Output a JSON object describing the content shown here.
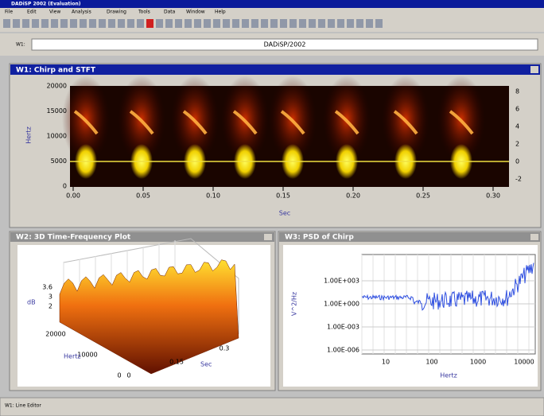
{
  "app": {
    "title": "DADiSP 2002 (Evaluation)",
    "menu": [
      "File",
      "Edit",
      "View",
      "Analysis",
      "Drawing",
      "Tools",
      "Data",
      "Window",
      "Help"
    ],
    "command_label": "W1:",
    "command_text": "DADiSP/2002",
    "status": "W1: Line Editor"
  },
  "w1": {
    "title": "W1: Chirp and STFT",
    "y_label": "Hertz",
    "x_label": "Sec",
    "y_ticks": [
      "0",
      "5000",
      "10000",
      "15000",
      "20000"
    ],
    "y2_ticks": [
      "-2",
      "0",
      "2",
      "4",
      "6",
      "8"
    ],
    "x_ticks": [
      "0.00",
      "0.05",
      "0.10",
      "0.15",
      "0.20",
      "0.25",
      "0.30"
    ]
  },
  "w2": {
    "title": "W2: 3D Time-Frequency Plot",
    "z_label": "dB",
    "z_ticks": [
      "2",
      "3",
      "3.6"
    ],
    "y_label": "Hertz",
    "y_ticks": [
      "20000",
      "10000",
      "0"
    ],
    "x_label": "Sec",
    "x_ticks": [
      "0",
      "0.15",
      "0.3"
    ]
  },
  "w3": {
    "title": "W3: PSD of Chirp",
    "y_label": "V^2/Hz",
    "y_ticks": [
      "1.00E-006",
      "1.00E-003",
      "1.00E+000",
      "1.00E+003"
    ],
    "x_ticks": [
      "10",
      "100",
      "1000",
      "10000"
    ],
    "x_label": "Hertz"
  }
}
